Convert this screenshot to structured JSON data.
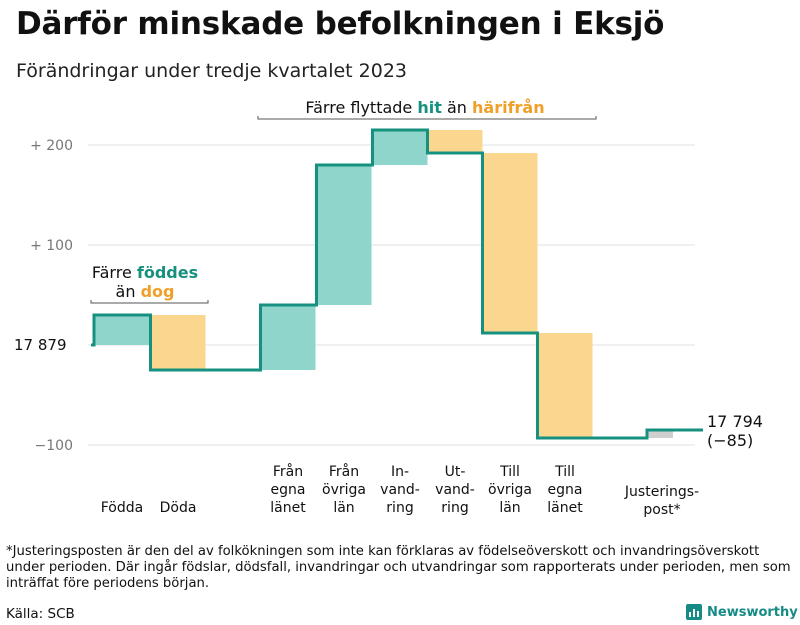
{
  "header": {
    "title": "Därför minskade befolkningen i Eksjö",
    "subtitle": "Förändringar under tredje kvartalet 2023"
  },
  "chart_data": {
    "type": "waterfall",
    "start_value": 17879,
    "start_label": "17  879",
    "end_label_value": "17 794",
    "end_label_change": "(−85)",
    "y_axis": {
      "min": -100,
      "max": 215,
      "ticks": [
        {
          "value": 200,
          "label": "+  200"
        },
        {
          "value": 100,
          "label": "+  100"
        },
        {
          "value": 0,
          "label": ""
        },
        {
          "value": -100,
          "label": "−100"
        }
      ],
      "gridlines": true
    },
    "steps": [
      {
        "label": [
          "Födda"
        ],
        "change": 30,
        "type": "in"
      },
      {
        "label": [
          "Döda"
        ],
        "change": -55,
        "type": "out"
      },
      {
        "label": [
          "Från",
          "egna",
          "länet"
        ],
        "change": 65,
        "type": "in"
      },
      {
        "label": [
          "Från",
          "övriga",
          "län"
        ],
        "change": 140,
        "type": "in"
      },
      {
        "label": [
          "In-",
          "vand-",
          "ring"
        ],
        "change": 35,
        "type": "in"
      },
      {
        "label": [
          "Ut-",
          "vand-",
          "ring"
        ],
        "change": -23,
        "type": "out"
      },
      {
        "label": [
          "Till",
          "övriga",
          "län"
        ],
        "change": -180,
        "type": "out"
      },
      {
        "label": [
          "Till",
          "egna",
          "länet"
        ],
        "change": -105,
        "type": "out"
      },
      {
        "label": [
          "Justerings-",
          "post*"
        ],
        "change": 8,
        "type": "adjust"
      }
    ],
    "annotations": [
      {
        "id": "births",
        "lines": [
          [
            {
              "text": "Färre ",
              "role": "plain"
            },
            {
              "text": "föddes",
              "role": "in"
            }
          ],
          [
            {
              "text": "än ",
              "role": "plain"
            },
            {
              "text": "dog",
              "role": "out"
            }
          ]
        ]
      },
      {
        "id": "migration",
        "lines": [
          [
            {
              "text": "Färre flyttade ",
              "role": "plain"
            },
            {
              "text": "hit",
              "role": "in"
            },
            {
              "text": " än ",
              "role": "plain"
            },
            {
              "text": "härifrån",
              "role": "out"
            }
          ]
        ]
      }
    ],
    "colors": {
      "in": "#8fd5cb",
      "out": "#fbd68f",
      "adjust": "#cfcfcf",
      "line": "#17917f",
      "in_text": "#17917f",
      "out_text": "#f0a028",
      "grid": "#e0e0e0",
      "tick_text": "#777777"
    }
  },
  "footnote": "*Justeringsposten är den del av folkökningen som inte kan förklaras av födelseöverskott och invandringsöverskott under perioden. Där ingår födslar, dödsfall, invandringar och utvandringar som rapporterats under perioden, men som inträffat före periodens början.",
  "source": "Källa: SCB",
  "brand": {
    "name": "Newsworthy",
    "logo_icon": "bar-chart-icon"
  }
}
